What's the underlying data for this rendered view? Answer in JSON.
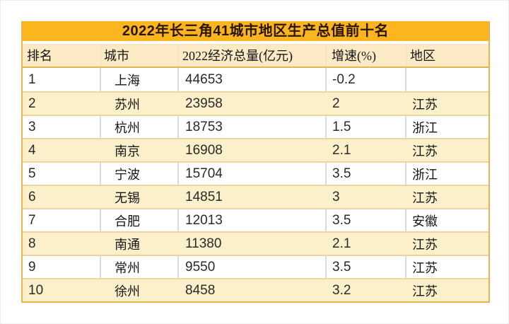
{
  "table": {
    "title": "2022年长三角41城市地区生产总值前十名",
    "columns": [
      "排名",
      "城市",
      "2022经济总量(亿元)",
      "增速(%)",
      "地区"
    ],
    "rows": [
      {
        "rank": "1",
        "city": "上海",
        "gdp": "44653",
        "growth": "-0.2",
        "region": ""
      },
      {
        "rank": "2",
        "city": "苏州",
        "gdp": "23958",
        "growth": "2",
        "region": "江苏"
      },
      {
        "rank": "3",
        "city": "杭州",
        "gdp": "18753",
        "growth": "1.5",
        "region": "浙江"
      },
      {
        "rank": "4",
        "city": "南京",
        "gdp": "16908",
        "growth": "2.1",
        "region": "江苏"
      },
      {
        "rank": "5",
        "city": "宁波",
        "gdp": "15704",
        "growth": "3.5",
        "region": "浙江"
      },
      {
        "rank": "6",
        "city": "无锡",
        "gdp": "14851",
        "growth": "3",
        "region": "江苏"
      },
      {
        "rank": "7",
        "city": "合肥",
        "gdp": "12013",
        "growth": "3.5",
        "region": "安徽"
      },
      {
        "rank": "8",
        "city": "南通",
        "gdp": "11380",
        "growth": "2.1",
        "region": "江苏"
      },
      {
        "rank": "9",
        "city": "常州",
        "gdp": "9550",
        "growth": "3.5",
        "region": "江苏"
      },
      {
        "rank": "10",
        "city": "徐州",
        "gdp": "8458",
        "growth": "3.2",
        "region": "江苏"
      }
    ],
    "colors": {
      "banner_bg": "#FBB61F",
      "banner_text": "#2B1500",
      "header_bg": "#FCEAC5",
      "row_bg": "#FFFFFF",
      "row_alt_bg": "#FCF0CB",
      "outer_border": "#E8B44E",
      "row_divider": "#EDD5A2",
      "header_divider": "#E5B54F",
      "white_row_cell_divider": "#D2DDE8"
    }
  },
  "chart_data": {
    "type": "table",
    "title": "2022年长三角41城市地区生产总值前十名",
    "columns": [
      "排名",
      "城市",
      "2022经济总量(亿元)",
      "增速(%)",
      "地区"
    ],
    "rows": [
      [
        1,
        "上海",
        44653,
        -0.2,
        ""
      ],
      [
        2,
        "苏州",
        23958,
        2,
        "江苏"
      ],
      [
        3,
        "杭州",
        18753,
        1.5,
        "浙江"
      ],
      [
        4,
        "南京",
        16908,
        2.1,
        "江苏"
      ],
      [
        5,
        "宁波",
        15704,
        3.5,
        "浙江"
      ],
      [
        6,
        "无锡",
        14851,
        3,
        "江苏"
      ],
      [
        7,
        "合肥",
        12013,
        3.5,
        "安徽"
      ],
      [
        8,
        "南通",
        11380,
        2.1,
        "江苏"
      ],
      [
        9,
        "常州",
        9550,
        3.5,
        "江苏"
      ],
      [
        10,
        "徐州",
        8458,
        3.2,
        "江苏"
      ]
    ]
  }
}
